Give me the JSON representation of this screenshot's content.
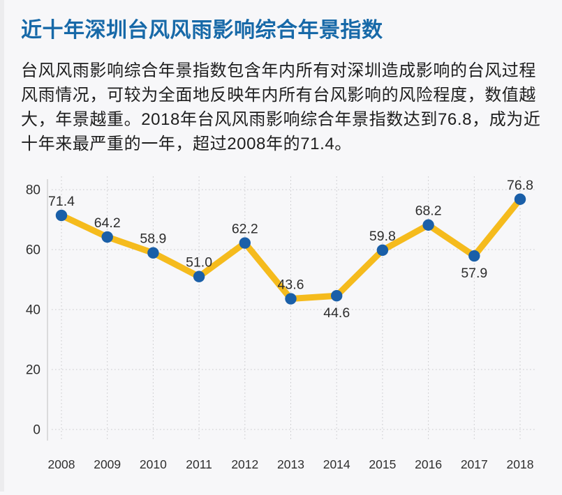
{
  "page": {
    "background": "#f7f7f9"
  },
  "header": {
    "title": "近十年深圳台风风雨影响综合年景指数",
    "color": "#1769a8"
  },
  "description": {
    "lines": [
      "台风风雨影响综合年景指数包含年内所有对深圳造成影响的台风过程",
      "风雨情况，可较为全面地反映年内所有台风影响的风险程度，数值越",
      "大，年景越重。2018年台风风雨影响综合年景指数达到76.8，成为近",
      "十年来最严重的一年，超过2008年的71.4。"
    ]
  },
  "chart_data": {
    "type": "line",
    "title": "近十年深圳台风风雨影响综合年景指数",
    "x": [
      "2008",
      "2009",
      "2010",
      "2011",
      "2012",
      "2013",
      "2014",
      "2015",
      "2016",
      "2017",
      "2018"
    ],
    "values": [
      71.4,
      64.2,
      58.9,
      51.0,
      62.2,
      43.6,
      44.6,
      59.8,
      68.2,
      57.9,
      76.8
    ],
    "labels": [
      "71.4",
      "64.2",
      "58.9",
      "51.0",
      "62.2",
      "43.6",
      "44.6",
      "59.8",
      "68.2",
      "57.9",
      "76.8"
    ],
    "label_placement": [
      "above",
      "above",
      "above",
      "above",
      "above",
      "above",
      "below",
      "above",
      "above",
      "below",
      "above"
    ],
    "yticks": [
      0,
      20,
      40,
      60,
      80
    ],
    "ylim": [
      0,
      80
    ],
    "xlabel": "",
    "ylabel": "",
    "grid": "dotted",
    "legend": "none",
    "line_color": "#f5bb1d",
    "marker_color": "#1a5fa8",
    "grid_color": "#c9c9cc",
    "axis_color": "#cccccc",
    "tick_text_color": "#2f2f2f",
    "label_text_color": "#2d2d2d"
  }
}
